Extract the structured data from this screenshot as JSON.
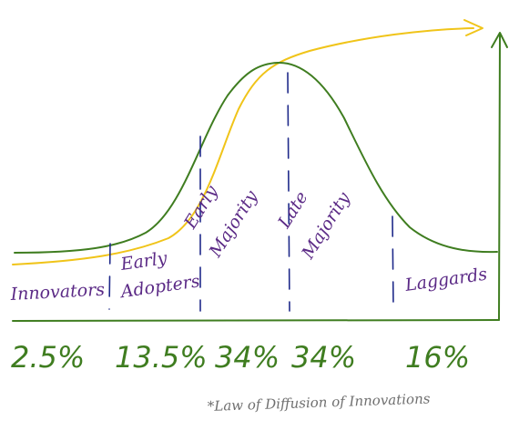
{
  "colors": {
    "bell_curve": "#3f7d20",
    "adoption_curve": "#f0c419",
    "dividers": "#1f2a8a",
    "segment_labels": "#5b2a86",
    "percentages": "#3f7d20",
    "axes": "#3f7d20",
    "footnote": "#6f6f6f"
  },
  "segments": [
    {
      "lines": [
        "Innovators"
      ]
    },
    {
      "lines": [
        "Early",
        "Adopters"
      ]
    },
    {
      "lines": [
        "Early",
        "Majority"
      ]
    },
    {
      "lines": [
        "Late",
        "Majority"
      ]
    },
    {
      "lines": [
        "Laggards"
      ]
    }
  ],
  "percentages": [
    "2.5%",
    "13.5%",
    "34%",
    "34%",
    "16%"
  ],
  "footnote": "*Law of Diffusion of Innovations"
}
